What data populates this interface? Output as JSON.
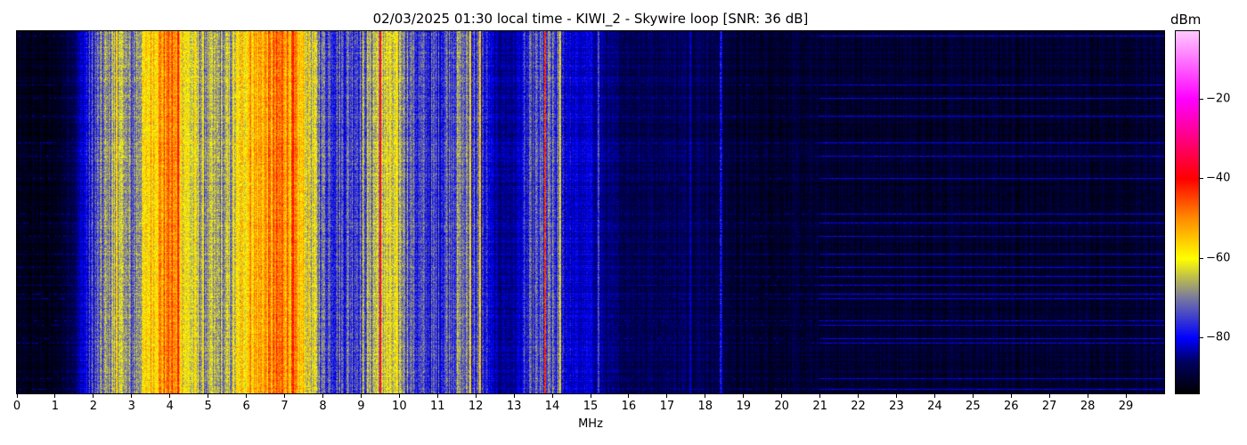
{
  "chart_data": {
    "type": "heatmap",
    "title": "02/03/2025 01:30 local time - KIWI_2 - Skywire loop [SNR: 36 dB]",
    "xlabel": "MHz",
    "ylabel": "",
    "xlim": [
      0,
      30
    ],
    "x_ticks": [
      "0",
      "1",
      "2",
      "3",
      "4",
      "5",
      "6",
      "7",
      "8",
      "9",
      "10",
      "11",
      "12",
      "13",
      "14",
      "15",
      "16",
      "17",
      "18",
      "19",
      "20",
      "21",
      "22",
      "23",
      "24",
      "25",
      "26",
      "27",
      "28",
      "29"
    ],
    "colorbar": {
      "label": "dBm",
      "range": [
        -94,
        -3
      ],
      "ticks": [
        {
          "value": -20,
          "label": "−20"
        },
        {
          "value": -40,
          "label": "−40"
        },
        {
          "value": -60,
          "label": "−60"
        },
        {
          "value": -80,
          "label": "−80"
        }
      ],
      "colormap": [
        {
          "value": -94,
          "color": "#000000"
        },
        {
          "value": -86,
          "color": "#000060"
        },
        {
          "value": -80,
          "color": "#0000ff"
        },
        {
          "value": -70,
          "color": "#7878a0"
        },
        {
          "value": -60,
          "color": "#ffff00"
        },
        {
          "value": -50,
          "color": "#ff8c00"
        },
        {
          "value": -40,
          "color": "#ff0000"
        },
        {
          "value": -20,
          "color": "#ff00ff"
        },
        {
          "value": -3,
          "color": "#ffc8ff"
        }
      ]
    },
    "frequency_bin_mhz": 0.5,
    "mean_level_dbm": [
      -92,
      -92,
      -92,
      -86,
      -76,
      -66,
      -72,
      -55,
      -48,
      -62,
      -68,
      -68,
      -55,
      -52,
      -48,
      -58,
      -72,
      -74,
      -72,
      -62,
      -66,
      -76,
      -76,
      -70,
      -74,
      -84,
      -84,
      -76,
      -74,
      -82,
      -82,
      -86,
      -87,
      -87,
      -87,
      -87,
      -87,
      -89,
      -90,
      -90,
      -90,
      -90,
      -90,
      -90,
      -90,
      -90,
      -90,
      -90,
      -90,
      -90,
      -90,
      -90,
      -90,
      -90,
      -90,
      -90,
      -90,
      -90,
      -90,
      -90
    ],
    "strong_signals": [
      {
        "mhz": 2.6,
        "dbm": -55
      },
      {
        "mhz": 2.75,
        "dbm": -65
      },
      {
        "mhz": 4.2,
        "dbm": -42
      },
      {
        "mhz": 6.1,
        "dbm": -50
      },
      {
        "mhz": 7.2,
        "dbm": -42
      },
      {
        "mhz": 9.5,
        "dbm": -40
      },
      {
        "mhz": 11.85,
        "dbm": -58
      },
      {
        "mhz": 12.1,
        "dbm": -58
      },
      {
        "mhz": 13.8,
        "dbm": -45
      },
      {
        "mhz": 14.2,
        "dbm": -60
      },
      {
        "mhz": 15.2,
        "dbm": -75
      },
      {
        "mhz": 17.6,
        "dbm": -80
      },
      {
        "mhz": 18.4,
        "dbm": -78
      }
    ]
  }
}
